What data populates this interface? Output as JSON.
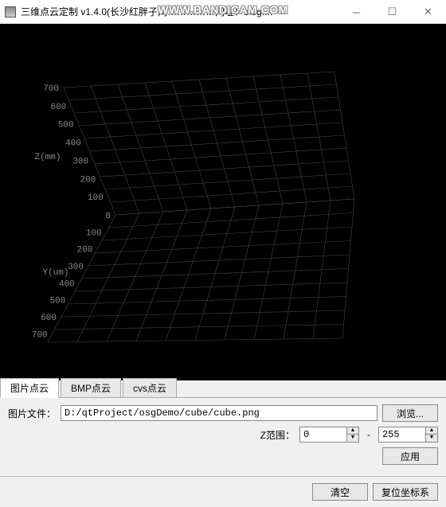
{
  "window": {
    "title": "三维点云定制 v1.4.0(长沙红胖子网……………网址：blog....",
    "watermark": "WWW.BANDICAM.COM"
  },
  "viewport": {
    "background": "#000000",
    "grid_color": "#444444",
    "label_color": "#888888",
    "z_axis": {
      "label": "Z(mm)",
      "ticks": [
        "700",
        "600",
        "500",
        "400",
        "300",
        "200",
        "100",
        "0"
      ]
    },
    "y_axis": {
      "label": "Y(um)",
      "ticks": [
        "100",
        "200",
        "300",
        "400",
        "500",
        "600",
        "700"
      ]
    }
  },
  "tabs": {
    "items": [
      {
        "label": "图片点云",
        "active": true
      },
      {
        "label": "BMP点云",
        "active": false
      },
      {
        "label": "cvs点云",
        "active": false
      }
    ]
  },
  "panel": {
    "file_label": "图片文件：",
    "file_path": "D:/qtProject/osgDemo/cube/cube.png",
    "browse_label": "浏览...",
    "zrange_label": "Z范围：",
    "zmin": "0",
    "zmax": "255",
    "sep": "-",
    "apply_label": "应用"
  },
  "bottom": {
    "clear_label": "清空",
    "reset_label": "复位坐标系"
  }
}
